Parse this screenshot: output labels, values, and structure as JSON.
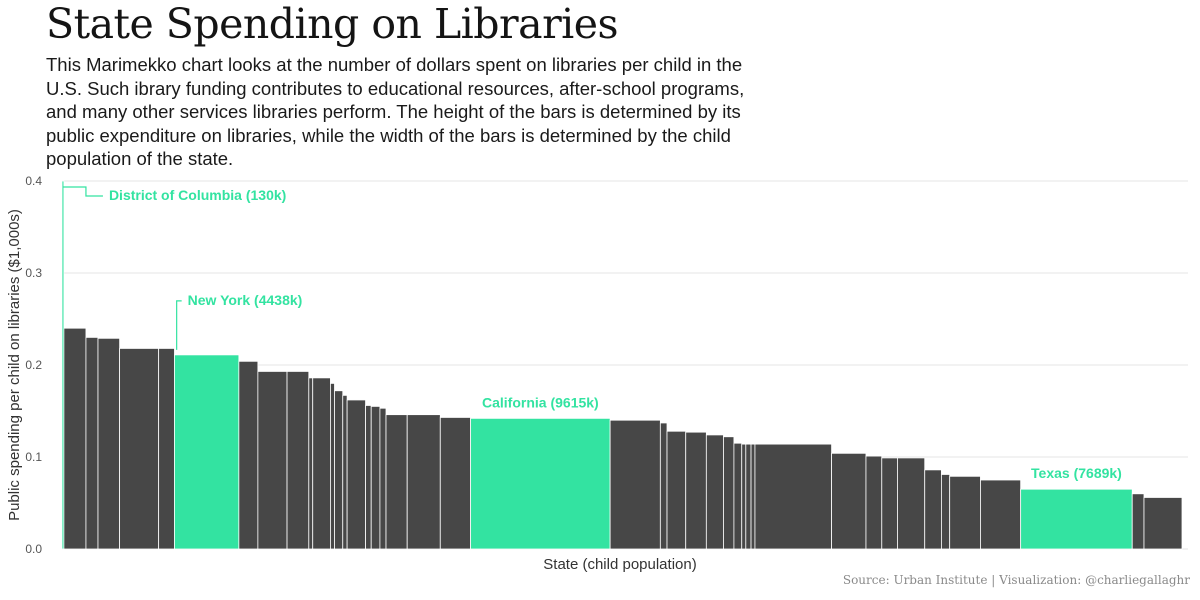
{
  "title": "State Spending on Libraries",
  "subtitle": "This Marimekko chart looks at the number of dollars spent on libraries per child in the U.S. Such ibrary funding contributes to educational resources, after-school programs, and many other services libraries perform. The height of the bars is determined by its public expenditure on libraries, while the width of the bars is determined by the child population of the state.",
  "source": "Source: Urban Institute  |  Visualization: @charliegallaghr",
  "colors": {
    "bar": "#474747",
    "highlight": "#33e3a1",
    "grid": "#e6e6e6",
    "axis_text": "#555555"
  },
  "chart_data": {
    "type": "bar",
    "subtype": "marimekko",
    "xlabel": "State (child population)",
    "ylabel": "Public spending per child on libraries ($1,000s)",
    "ylim": [
      0,
      0.4
    ],
    "yticks": [
      "0.0",
      "0.1",
      "0.2",
      "0.3",
      "0.4"
    ],
    "grid": true,
    "units": {
      "x": "children (thousands)",
      "y": "$1,000s per child"
    },
    "bars": [
      {
        "population": 130,
        "value": 0.4,
        "label": "District of Columbia (130k)",
        "highlight": true
      },
      {
        "population": 1520,
        "value": 0.24
      },
      {
        "population": 830,
        "value": 0.23
      },
      {
        "population": 1490,
        "value": 0.229
      },
      {
        "population": 2690,
        "value": 0.218
      },
      {
        "population": 1090,
        "value": 0.218
      },
      {
        "population": 4438,
        "value": 0.211,
        "label": "New York (4438k)",
        "highlight": true
      },
      {
        "population": 1310,
        "value": 0.204
      },
      {
        "population": 2010,
        "value": 0.193
      },
      {
        "population": 1500,
        "value": 0.193
      },
      {
        "population": 270,
        "value": 0.186
      },
      {
        "population": 1220,
        "value": 0.186
      },
      {
        "population": 280,
        "value": 0.18
      },
      {
        "population": 570,
        "value": 0.172
      },
      {
        "population": 300,
        "value": 0.167
      },
      {
        "population": 1270,
        "value": 0.162
      },
      {
        "population": 390,
        "value": 0.156
      },
      {
        "population": 600,
        "value": 0.155
      },
      {
        "population": 420,
        "value": 0.153
      },
      {
        "population": 1460,
        "value": 0.146
      },
      {
        "population": 2280,
        "value": 0.146
      },
      {
        "population": 2090,
        "value": 0.143
      },
      {
        "population": 9615,
        "value": 0.142,
        "label": "California (9615k)",
        "highlight": true
      },
      {
        "population": 3460,
        "value": 0.14
      },
      {
        "population": 460,
        "value": 0.137
      },
      {
        "population": 1290,
        "value": 0.128
      },
      {
        "population": 1420,
        "value": 0.127
      },
      {
        "population": 1180,
        "value": 0.124
      },
      {
        "population": 720,
        "value": 0.122
      },
      {
        "population": 540,
        "value": 0.115
      },
      {
        "population": 280,
        "value": 0.114
      },
      {
        "population": 360,
        "value": 0.114
      },
      {
        "population": 270,
        "value": 0.114
      },
      {
        "population": 5280,
        "value": 0.114
      },
      {
        "population": 2370,
        "value": 0.104
      },
      {
        "population": 1090,
        "value": 0.101
      },
      {
        "population": 1080,
        "value": 0.099
      },
      {
        "population": 1880,
        "value": 0.099
      },
      {
        "population": 1150,
        "value": 0.086
      },
      {
        "population": 570,
        "value": 0.081
      },
      {
        "population": 2120,
        "value": 0.079
      },
      {
        "population": 2770,
        "value": 0.075
      },
      {
        "population": 7689,
        "value": 0.065,
        "label": "Texas (7689k)",
        "highlight": true
      },
      {
        "population": 810,
        "value": 0.06
      },
      {
        "population": 2620,
        "value": 0.056
      }
    ]
  }
}
